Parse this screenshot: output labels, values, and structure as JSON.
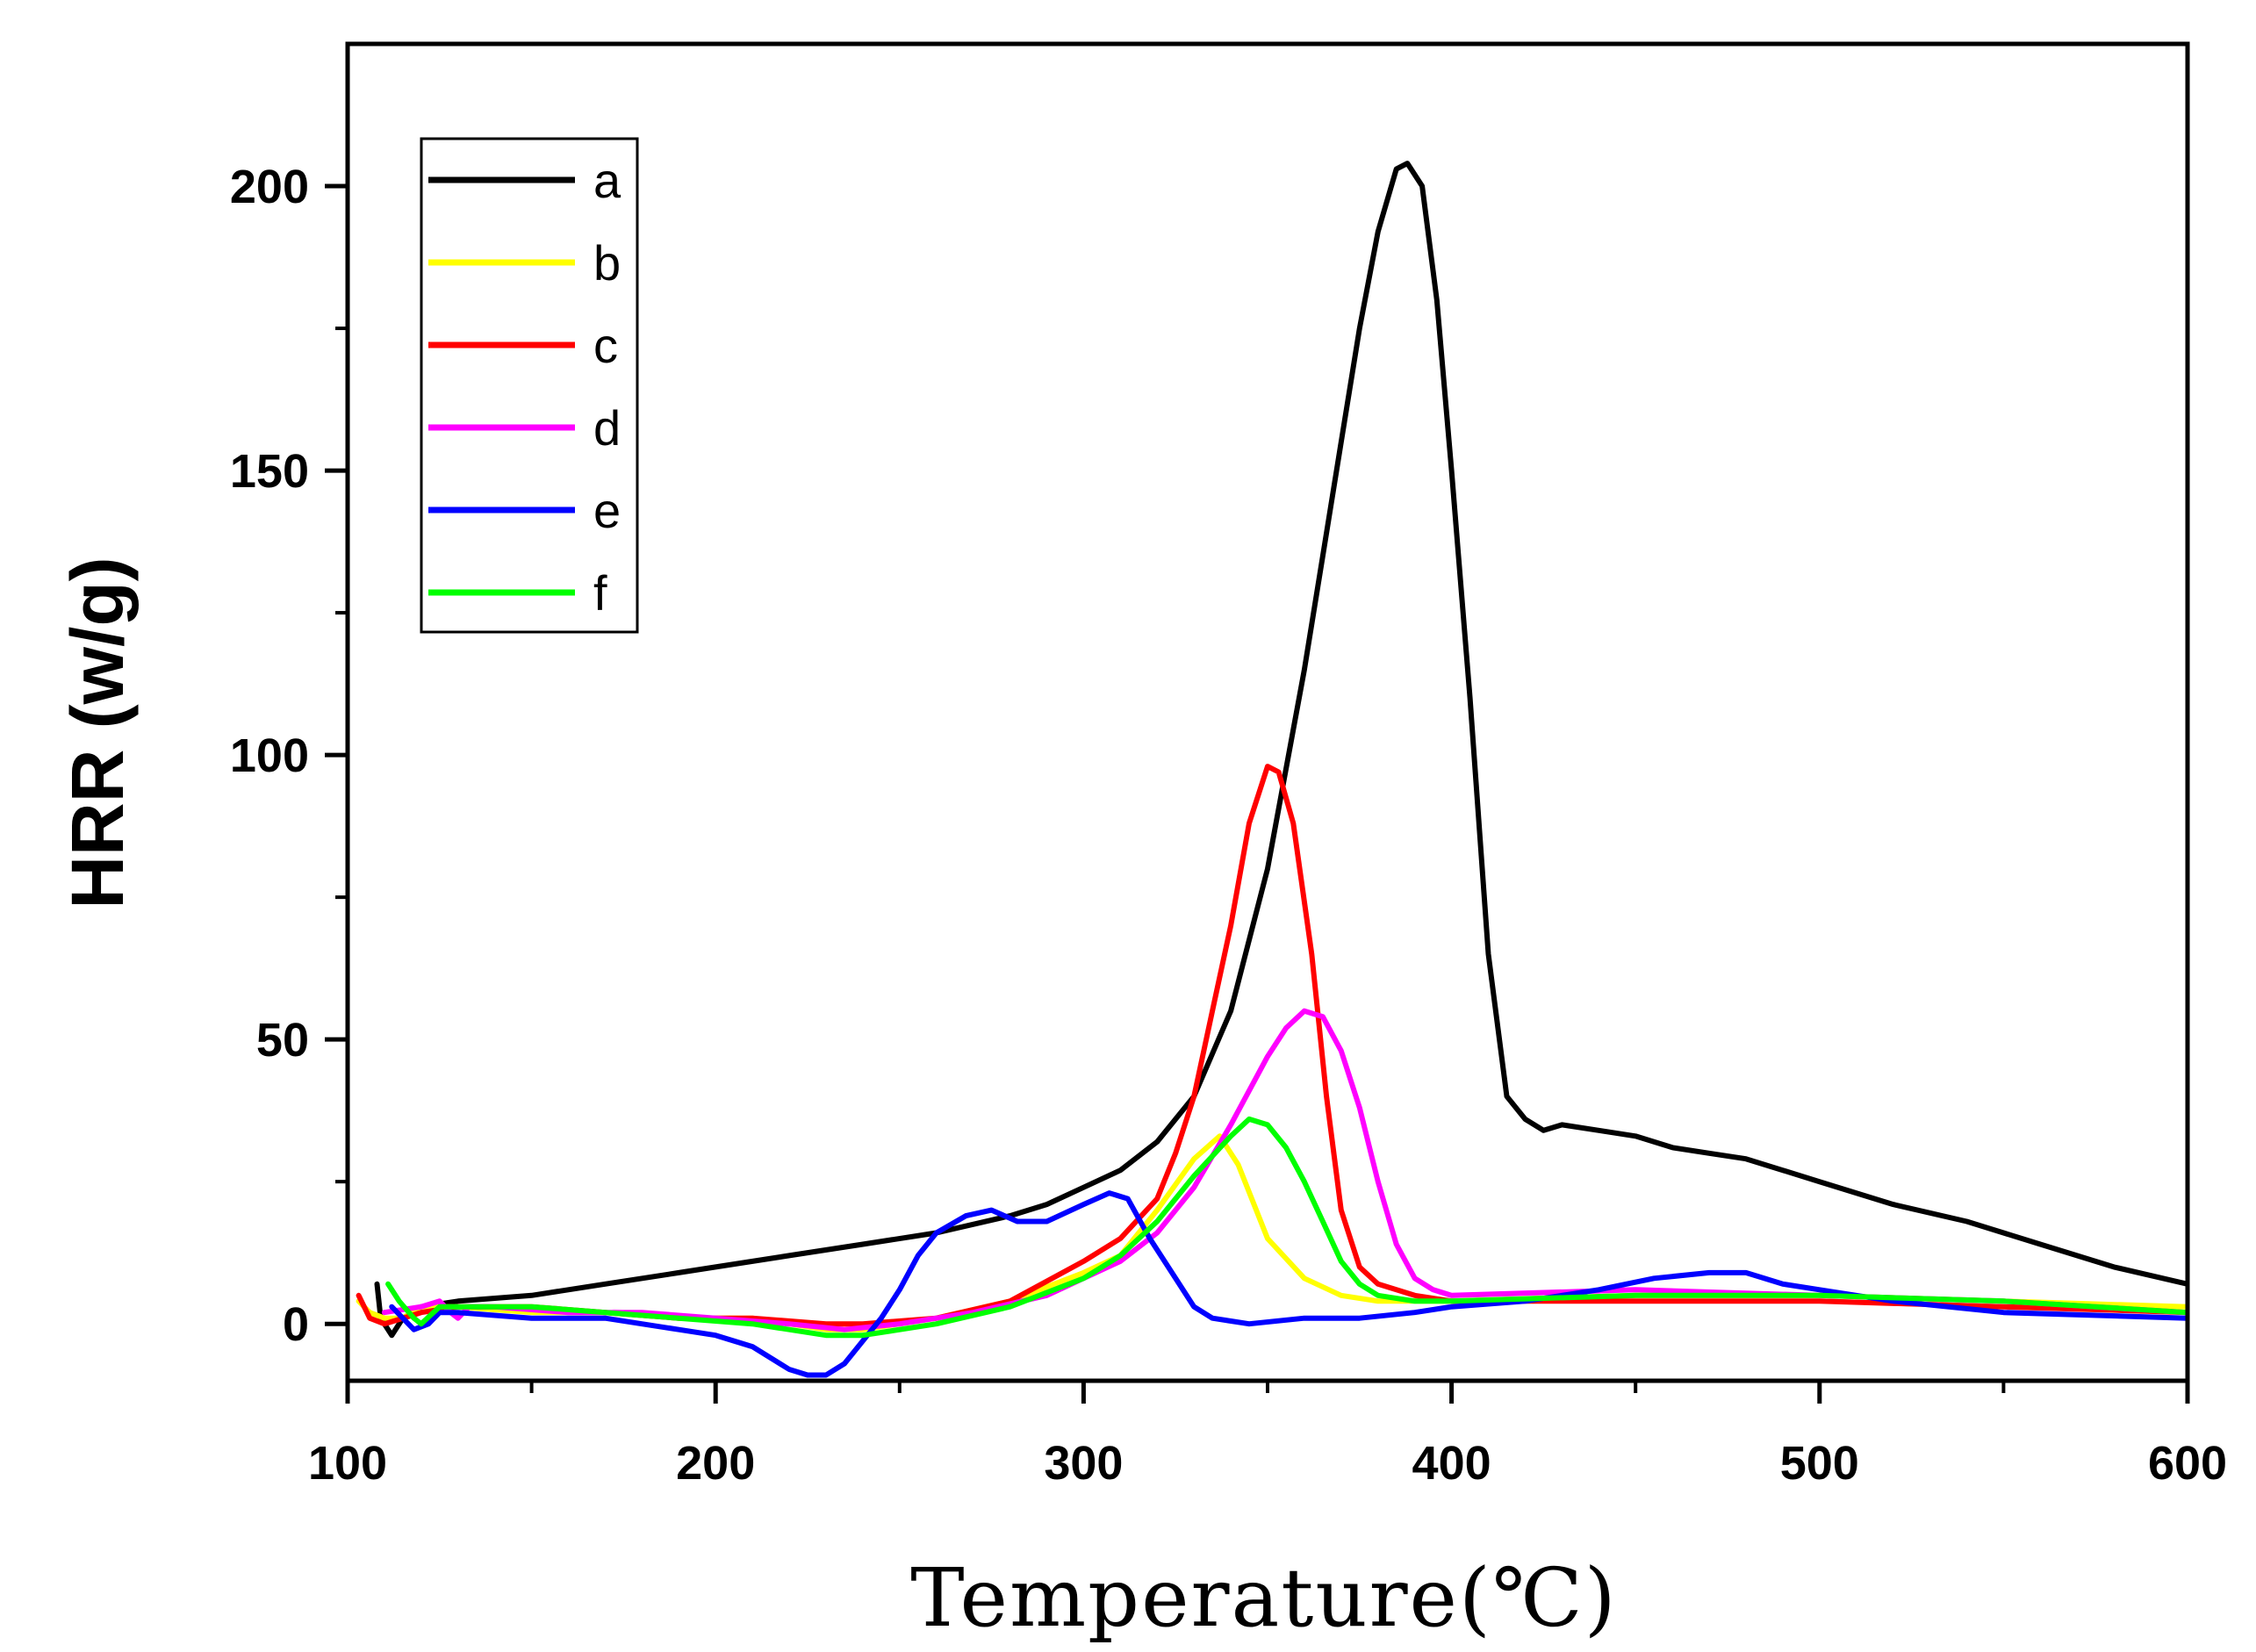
{
  "chart_data": {
    "type": "line",
    "xlabel": "Temperature(℃)",
    "ylabel": "HRR (w/g)",
    "xlim": [
      100,
      600
    ],
    "ylim": [
      -10,
      225
    ],
    "xticks": [
      100,
      200,
      300,
      400,
      500,
      600
    ],
    "yticks": [
      0,
      50,
      100,
      150,
      200
    ],
    "legend_position": "top-left",
    "series": [
      {
        "name": "a",
        "color": "#000000",
        "points": [
          [
            108,
            7
          ],
          [
            109,
            1
          ],
          [
            112,
            -2
          ],
          [
            115,
            1
          ],
          [
            120,
            3
          ],
          [
            130,
            4
          ],
          [
            150,
            5
          ],
          [
            170,
            7
          ],
          [
            190,
            9
          ],
          [
            200,
            10
          ],
          [
            220,
            12
          ],
          [
            240,
            14
          ],
          [
            260,
            16
          ],
          [
            280,
            19
          ],
          [
            290,
            21
          ],
          [
            300,
            24
          ],
          [
            310,
            27
          ],
          [
            320,
            32
          ],
          [
            330,
            40
          ],
          [
            340,
            55
          ],
          [
            350,
            80
          ],
          [
            360,
            115
          ],
          [
            365,
            135
          ],
          [
            370,
            155
          ],
          [
            375,
            175
          ],
          [
            380,
            192
          ],
          [
            385,
            203
          ],
          [
            388,
            204
          ],
          [
            392,
            200
          ],
          [
            396,
            180
          ],
          [
            400,
            150
          ],
          [
            405,
            110
          ],
          [
            410,
            65
          ],
          [
            415,
            40
          ],
          [
            420,
            36
          ],
          [
            425,
            34
          ],
          [
            430,
            35
          ],
          [
            440,
            34
          ],
          [
            450,
            33
          ],
          [
            460,
            31
          ],
          [
            470,
            30
          ],
          [
            480,
            29
          ],
          [
            500,
            25
          ],
          [
            520,
            21
          ],
          [
            540,
            18
          ],
          [
            560,
            14
          ],
          [
            580,
            10
          ],
          [
            600,
            7
          ]
        ]
      },
      {
        "name": "b",
        "color": "#ffff00",
        "points": [
          [
            103,
            4
          ],
          [
            106,
            2
          ],
          [
            110,
            1
          ],
          [
            115,
            1
          ],
          [
            120,
            3
          ],
          [
            130,
            3
          ],
          [
            150,
            2
          ],
          [
            170,
            2
          ],
          [
            190,
            1
          ],
          [
            210,
            1
          ],
          [
            230,
            -1
          ],
          [
            240,
            -1
          ],
          [
            260,
            1
          ],
          [
            280,
            4
          ],
          [
            300,
            9
          ],
          [
            310,
            12
          ],
          [
            320,
            20
          ],
          [
            330,
            29
          ],
          [
            337,
            33
          ],
          [
            342,
            28
          ],
          [
            350,
            15
          ],
          [
            360,
            8
          ],
          [
            370,
            5
          ],
          [
            380,
            4
          ],
          [
            400,
            4
          ],
          [
            450,
            5
          ],
          [
            500,
            5
          ],
          [
            550,
            4
          ],
          [
            600,
            3
          ]
        ]
      },
      {
        "name": "c",
        "color": "#ff0000",
        "points": [
          [
            103,
            5
          ],
          [
            106,
            1
          ],
          [
            110,
            0
          ],
          [
            115,
            1
          ],
          [
            120,
            2
          ],
          [
            130,
            3
          ],
          [
            150,
            3
          ],
          [
            170,
            2
          ],
          [
            190,
            1
          ],
          [
            210,
            1
          ],
          [
            230,
            0
          ],
          [
            240,
            0
          ],
          [
            260,
            1
          ],
          [
            280,
            4
          ],
          [
            300,
            11
          ],
          [
            310,
            15
          ],
          [
            320,
            22
          ],
          [
            325,
            30
          ],
          [
            330,
            40
          ],
          [
            335,
            55
          ],
          [
            340,
            70
          ],
          [
            345,
            88
          ],
          [
            350,
            98
          ],
          [
            353,
            97
          ],
          [
            357,
            88
          ],
          [
            362,
            65
          ],
          [
            366,
            40
          ],
          [
            370,
            20
          ],
          [
            375,
            10
          ],
          [
            380,
            7
          ],
          [
            390,
            5
          ],
          [
            400,
            4
          ],
          [
            450,
            4
          ],
          [
            500,
            4
          ],
          [
            550,
            3
          ],
          [
            600,
            2
          ]
        ]
      },
      {
        "name": "d",
        "color": "#ff00ff",
        "points": [
          [
            110,
            2
          ],
          [
            120,
            3
          ],
          [
            125,
            4
          ],
          [
            128,
            2
          ],
          [
            130,
            1
          ],
          [
            133,
            3
          ],
          [
            140,
            3
          ],
          [
            160,
            2
          ],
          [
            180,
            2
          ],
          [
            200,
            1
          ],
          [
            220,
            0
          ],
          [
            235,
            -1
          ],
          [
            250,
            0
          ],
          [
            270,
            2
          ],
          [
            290,
            5
          ],
          [
            300,
            8
          ],
          [
            310,
            11
          ],
          [
            320,
            16
          ],
          [
            330,
            24
          ],
          [
            340,
            35
          ],
          [
            350,
            47
          ],
          [
            355,
            52
          ],
          [
            360,
            55
          ],
          [
            365,
            54
          ],
          [
            370,
            48
          ],
          [
            375,
            38
          ],
          [
            380,
            25
          ],
          [
            385,
            14
          ],
          [
            390,
            8
          ],
          [
            395,
            6
          ],
          [
            400,
            5
          ],
          [
            450,
            6
          ],
          [
            500,
            5
          ],
          [
            550,
            4
          ],
          [
            600,
            2
          ]
        ]
      },
      {
        "name": "e",
        "color": "#0000ff",
        "points": [
          [
            112,
            3
          ],
          [
            115,
            1
          ],
          [
            118,
            -1
          ],
          [
            122,
            0
          ],
          [
            125,
            2
          ],
          [
            130,
            2
          ],
          [
            150,
            1
          ],
          [
            170,
            1
          ],
          [
            190,
            -1
          ],
          [
            200,
            -2
          ],
          [
            210,
            -4
          ],
          [
            220,
            -8
          ],
          [
            225,
            -9
          ],
          [
            230,
            -9
          ],
          [
            235,
            -7
          ],
          [
            240,
            -3
          ],
          [
            245,
            1
          ],
          [
            250,
            6
          ],
          [
            255,
            12
          ],
          [
            260,
            16
          ],
          [
            268,
            19
          ],
          [
            275,
            20
          ],
          [
            282,
            18
          ],
          [
            290,
            18
          ],
          [
            300,
            21
          ],
          [
            307,
            23
          ],
          [
            312,
            22
          ],
          [
            318,
            15
          ],
          [
            325,
            8
          ],
          [
            330,
            3
          ],
          [
            335,
            1
          ],
          [
            345,
            0
          ],
          [
            360,
            1
          ],
          [
            375,
            1
          ],
          [
            390,
            2
          ],
          [
            400,
            3
          ],
          [
            420,
            4
          ],
          [
            440,
            6
          ],
          [
            455,
            8
          ],
          [
            470,
            9
          ],
          [
            480,
            9
          ],
          [
            490,
            7
          ],
          [
            500,
            6
          ],
          [
            520,
            4
          ],
          [
            550,
            2
          ],
          [
            600,
            1
          ]
        ]
      },
      {
        "name": "f",
        "color": "#00ff00",
        "points": [
          [
            111,
            7
          ],
          [
            114,
            4
          ],
          [
            118,
            1
          ],
          [
            120,
            0
          ],
          [
            125,
            3
          ],
          [
            130,
            3
          ],
          [
            150,
            3
          ],
          [
            170,
            2
          ],
          [
            190,
            1
          ],
          [
            210,
            0
          ],
          [
            230,
            -2
          ],
          [
            240,
            -2
          ],
          [
            260,
            0
          ],
          [
            280,
            3
          ],
          [
            300,
            8
          ],
          [
            310,
            12
          ],
          [
            320,
            18
          ],
          [
            330,
            26
          ],
          [
            340,
            33
          ],
          [
            345,
            36
          ],
          [
            350,
            35
          ],
          [
            355,
            31
          ],
          [
            360,
            25
          ],
          [
            365,
            18
          ],
          [
            370,
            11
          ],
          [
            375,
            7
          ],
          [
            380,
            5
          ],
          [
            390,
            4
          ],
          [
            400,
            4
          ],
          [
            450,
            5
          ],
          [
            500,
            5
          ],
          [
            550,
            4
          ],
          [
            600,
            2
          ]
        ]
      }
    ]
  }
}
